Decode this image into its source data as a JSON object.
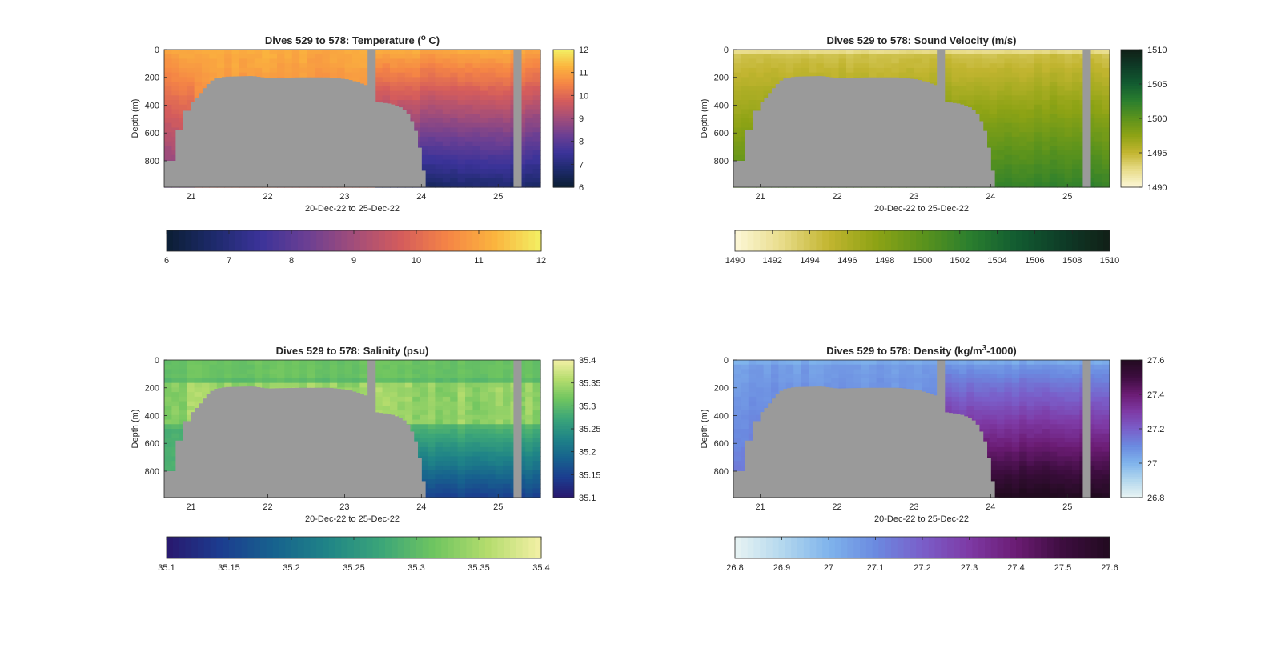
{
  "chart_data": [
    {
      "type": "heatmap",
      "key": "temperature",
      "title": "Dives 529 to 578: Temperature (",
      "title_sup": "o",
      "title_post": " C)",
      "xlabel": "20-Dec-22 to 25-Dec-22",
      "ylabel": "Depth (m)",
      "x_ticks": [
        "21",
        "22",
        "23",
        "24",
        "25"
      ],
      "y_ticks": [
        "0",
        "200",
        "400",
        "600",
        "800"
      ],
      "xlim": [
        20.65,
        25.55
      ],
      "ylim": [
        990,
        0
      ],
      "colorbar_range": [
        6,
        12
      ],
      "colorbar_ticks_vertical": [
        "6",
        "7",
        "8",
        "9",
        "10",
        "11",
        "12"
      ],
      "colorbar_ticks_horizontal": [
        "6",
        "7",
        "8",
        "9",
        "10",
        "11",
        "12"
      ],
      "colormap": [
        "#0b1e33",
        "#1d2a6b",
        "#3b3399",
        "#6b3f93",
        "#a24d7a",
        "#d45c5c",
        "#f58545",
        "#fbb43e",
        "#f2f064"
      ],
      "mask_color": "#9a9a9a"
    },
    {
      "type": "heatmap",
      "key": "sound_velocity",
      "title": "Dives 529 to 578: Sound Velocity (m/s)",
      "title_sup": "",
      "title_post": "",
      "xlabel": "20-Dec-22 to 25-Dec-22",
      "ylabel": "Depth (m)",
      "x_ticks": [
        "21",
        "22",
        "23",
        "24",
        "25"
      ],
      "y_ticks": [
        "0",
        "200",
        "400",
        "600",
        "800"
      ],
      "xlim": [
        20.65,
        25.55
      ],
      "ylim": [
        990,
        0
      ],
      "colorbar_range": [
        1490,
        1510
      ],
      "colorbar_ticks_vertical": [
        "1490",
        "1495",
        "1500",
        "1505",
        "1510"
      ],
      "colorbar_ticks_horizontal": [
        "1490",
        "1492",
        "1494",
        "1496",
        "1498",
        "1500",
        "1502",
        "1504",
        "1506",
        "1508",
        "1510"
      ],
      "colormap": [
        "#fdf8d8",
        "#e8dc8a",
        "#c2b530",
        "#8ea315",
        "#5c931c",
        "#2b7f2e",
        "#125c31",
        "#0e3c27",
        "#111f17"
      ],
      "mask_color": "#9a9a9a"
    },
    {
      "type": "heatmap",
      "key": "salinity",
      "title": "Dives 529 to 578: Salinity (psu)",
      "title_sup": "",
      "title_post": "",
      "xlabel": "20-Dec-22 to 25-Dec-22",
      "ylabel": "Depth (m)",
      "x_ticks": [
        "21",
        "22",
        "23",
        "24",
        "25"
      ],
      "y_ticks": [
        "0",
        "200",
        "400",
        "600",
        "800"
      ],
      "xlim": [
        20.65,
        25.55
      ],
      "ylim": [
        990,
        0
      ],
      "colorbar_range": [
        35.1,
        35.4
      ],
      "colorbar_ticks_vertical": [
        "35.1",
        "35.15",
        "35.2",
        "35.25",
        "35.3",
        "35.35",
        "35.4"
      ],
      "colorbar_ticks_horizontal": [
        "35.1",
        "35.15",
        "35.2",
        "35.25",
        "35.3",
        "35.35",
        "35.4"
      ],
      "colormap": [
        "#29186e",
        "#1c3c8f",
        "#17628e",
        "#1f8487",
        "#3ba579",
        "#6fc560",
        "#b4dc6d",
        "#f4f0a6"
      ],
      "mask_color": "#9a9a9a"
    },
    {
      "type": "heatmap",
      "key": "density",
      "title": "Dives 529 to 578: Density (kg/m",
      "title_sup": "3",
      "title_post": "-1000)",
      "xlabel": "20-Dec-22 to 25-Dec-22",
      "ylabel": "Depth (m)",
      "x_ticks": [
        "21",
        "22",
        "23",
        "24",
        "25"
      ],
      "y_ticks": [
        "0",
        "200",
        "400",
        "600",
        "800"
      ],
      "xlim": [
        20.65,
        25.55
      ],
      "ylim": [
        990,
        0
      ],
      "colorbar_range": [
        26.8,
        27.6
      ],
      "colorbar_ticks_vertical": [
        "26.8",
        "27",
        "27.2",
        "27.4",
        "27.6"
      ],
      "colorbar_ticks_horizontal": [
        "26.8",
        "26.9",
        "27",
        "27.1",
        "27.2",
        "27.3",
        "27.4",
        "27.5",
        "27.6"
      ],
      "colormap": [
        "#e8f4f3",
        "#b4d8ee",
        "#7fb4ec",
        "#6b8ae0",
        "#7a5ec9",
        "#7e3aa5",
        "#6b1c74",
        "#3d0d3f",
        "#220b20"
      ],
      "mask_color": "#9a9a9a"
    }
  ]
}
